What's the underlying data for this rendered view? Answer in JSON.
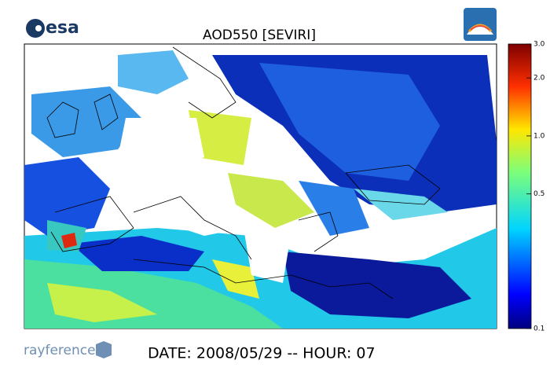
{
  "header": {
    "logo": "esa",
    "title": "AOD550  [SEVIRI]"
  },
  "colorbar": {
    "range": [
      0.1,
      3
    ],
    "scale": "log",
    "ticks": [
      {
        "value": 3,
        "label": "3.0"
      },
      {
        "value": 2,
        "label": "2.0"
      },
      {
        "value": 1,
        "label": "1.0"
      },
      0.5,
      0.1
    ]
  },
  "footer": {
    "logo": "rayference",
    "date": "DATE: 2008/05/29 -- HOUR: 07"
  }
}
